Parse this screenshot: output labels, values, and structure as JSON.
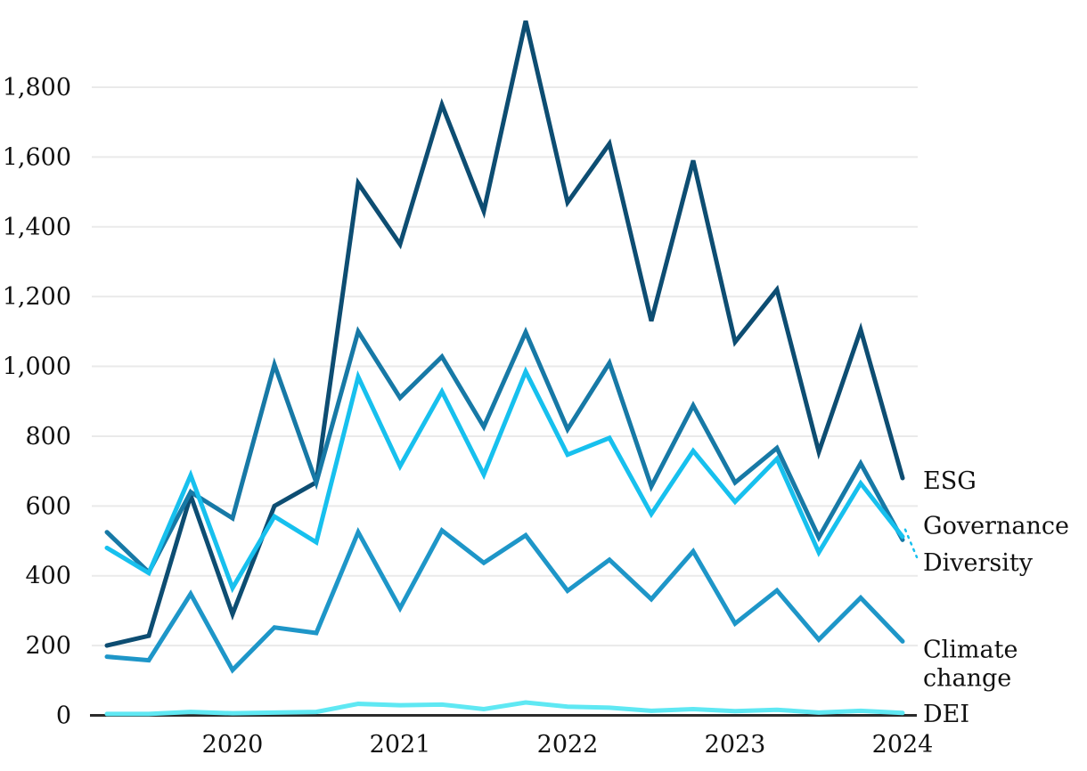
{
  "chart_data": {
    "type": "line",
    "title": "",
    "xlabel": "",
    "ylabel": "",
    "x": [
      "2019 Q2",
      "2019 Q3",
      "2019 Q4",
      "2020 Q1",
      "2020 Q2",
      "2020 Q3",
      "2020 Q4",
      "2021 Q1",
      "2021 Q2",
      "2021 Q3",
      "2021 Q4",
      "2022 Q1",
      "2022 Q2",
      "2022 Q3",
      "2022 Q4",
      "2023 Q1",
      "2023 Q2",
      "2023 Q3",
      "2023 Q4",
      "2024 Q1"
    ],
    "x_axis_ticks": [
      {
        "index": 3,
        "label": "2020"
      },
      {
        "index": 7,
        "label": "2021"
      },
      {
        "index": 11,
        "label": "2022"
      },
      {
        "index": 15,
        "label": "2023"
      },
      {
        "index": 19,
        "label": "2024"
      }
    ],
    "y_ticks": [
      {
        "value": 0,
        "label": "0"
      },
      {
        "value": 200,
        "label": "200"
      },
      {
        "value": 400,
        "label": "400"
      },
      {
        "value": 600,
        "label": "600"
      },
      {
        "value": 800,
        "label": "800"
      },
      {
        "value": 1000,
        "label": "1,000"
      },
      {
        "value": 1200,
        "label": "1,200"
      },
      {
        "value": 1400,
        "label": "1,400"
      },
      {
        "value": 1600,
        "label": "1,600"
      },
      {
        "value": 1800,
        "label": "1,800"
      }
    ],
    "ylim": [
      0,
      2050
    ],
    "grid": "horizontal",
    "legend_position": "right-edge-labels",
    "colors": {
      "grid": "#eaeaea",
      "axis": "#2b2b2b",
      "text": "#111111"
    },
    "series": [
      {
        "name": "ESG",
        "label_lines": [
          "ESG"
        ],
        "color": "#0d4d72",
        "values": [
          200,
          228,
          630,
          290,
          600,
          668,
          1525,
          1350,
          1750,
          1445,
          1990,
          1470,
          1638,
          1130,
          1590,
          1070,
          1220,
          755,
          1105,
          680
        ]
      },
      {
        "name": "Governance",
        "label_lines": [
          "Governance"
        ],
        "color": "#1779a6",
        "values": [
          525,
          410,
          640,
          565,
          1005,
          667,
          1100,
          910,
          1028,
          827,
          1098,
          820,
          1010,
          656,
          888,
          667,
          766,
          510,
          722,
          503
        ]
      },
      {
        "name": "Diversity",
        "label_lines": [
          "Diversity"
        ],
        "color": "#17c0ee",
        "dotted_label_connector": true,
        "values": [
          480,
          408,
          688,
          365,
          570,
          496,
          970,
          714,
          928,
          690,
          985,
          747,
          795,
          577,
          758,
          612,
          735,
          467,
          665,
          512
        ]
      },
      {
        "name": "Climate change",
        "label_lines": [
          "Climate",
          "change"
        ],
        "color": "#1e96c8",
        "values": [
          168,
          158,
          348,
          130,
          252,
          236,
          525,
          307,
          530,
          437,
          516,
          357,
          446,
          333,
          470,
          263,
          358,
          217,
          337,
          212
        ]
      },
      {
        "name": "DEI",
        "label_lines": [
          "DEI"
        ],
        "color": "#5fe8f3",
        "values": [
          4,
          4,
          10,
          6,
          8,
          10,
          33,
          29,
          31,
          18,
          37,
          25,
          22,
          13,
          18,
          12,
          16,
          8,
          13,
          7
        ]
      }
    ]
  }
}
